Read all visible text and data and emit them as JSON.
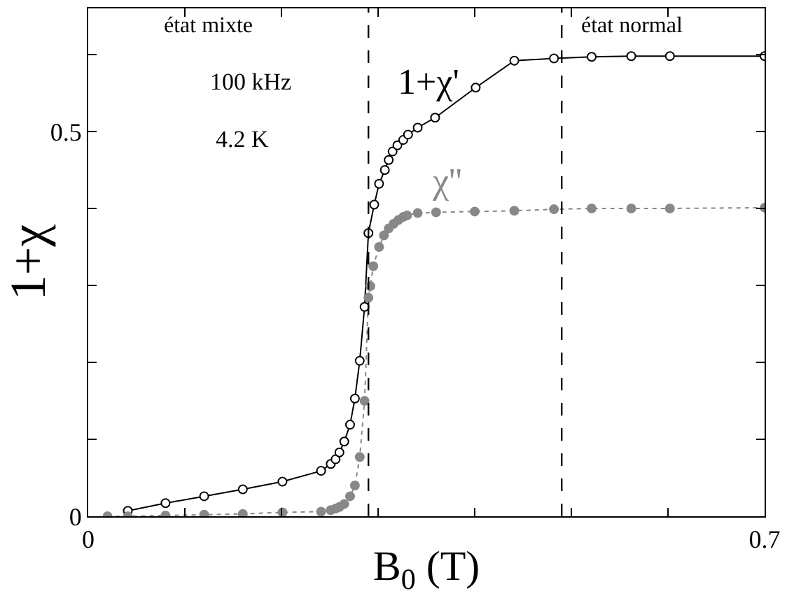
{
  "chart_data": {
    "type": "line",
    "xlabel": "B$_{0}$ (T)",
    "ylabel": "1+χ",
    "xlim": [
      0,
      0.7
    ],
    "ylim": [
      0,
      0.66
    ],
    "xticks": [
      0,
      {
        "value": 0.1,
        "label": null
      },
      {
        "value": 0.2,
        "label": null
      },
      {
        "value": 0.3,
        "label": null
      },
      {
        "value": 0.4,
        "label": null
      },
      {
        "value": 0.5,
        "label": null
      },
      {
        "value": 0.6,
        "label": null
      },
      {
        "value": 0.7,
        "label": "0.7"
      }
    ],
    "yticks": [
      0,
      {
        "value": 0.1,
        "label": null
      },
      {
        "value": 0.2,
        "label": null
      },
      {
        "value": 0.3,
        "label": null
      },
      {
        "value": 0.4,
        "label": null
      },
      0.5,
      {
        "value": 0.6,
        "label": null
      }
    ],
    "legend": false,
    "marker": "circle",
    "series": [
      {
        "name": "1+χ'",
        "color": "#000000",
        "line_style": "solid",
        "x": [
          0.041,
          0.08,
          0.12,
          0.16,
          0.201,
          0.241,
          0.251,
          0.256,
          0.26,
          0.265,
          0.271,
          0.276,
          0.281,
          0.286,
          0.29,
          0.296,
          0.301,
          0.307,
          0.311,
          0.315,
          0.32,
          0.326,
          0.331,
          0.341,
          0.359,
          0.401,
          0.441,
          0.482,
          0.521,
          0.562,
          0.602,
          0.7
        ],
        "values": [
          0.007,
          0.017,
          0.026,
          0.035,
          0.045,
          0.059,
          0.068,
          0.074,
          0.083,
          0.097,
          0.119,
          0.153,
          0.202,
          0.272,
          0.368,
          0.405,
          0.432,
          0.45,
          0.463,
          0.474,
          0.482,
          0.489,
          0.496,
          0.505,
          0.518,
          0.557,
          0.592,
          0.595,
          0.597,
          0.598,
          0.598,
          0.598
        ]
      },
      {
        "name": "χ''",
        "color": "#888888",
        "line_style": "dotted",
        "x": [
          0.02,
          0.041,
          0.08,
          0.12,
          0.16,
          0.201,
          0.241,
          0.251,
          0.256,
          0.26,
          0.265,
          0.271,
          0.276,
          0.281,
          0.286,
          0.29,
          0.292,
          0.295,
          0.301,
          0.306,
          0.311,
          0.316,
          0.321,
          0.326,
          0.33,
          0.341,
          0.36,
          0.4,
          0.441,
          0.482,
          0.521,
          0.562,
          0.602,
          0.7
        ],
        "values": [
          0.0,
          0.0,
          0.001,
          0.002,
          0.003,
          0.005,
          0.006,
          0.008,
          0.01,
          0.012,
          0.016,
          0.026,
          0.04,
          0.077,
          0.15,
          0.284,
          0.299,
          0.325,
          0.35,
          0.365,
          0.374,
          0.38,
          0.385,
          0.389,
          0.391,
          0.394,
          0.395,
          0.396,
          0.397,
          0.399,
          0.4,
          0.4,
          0.4,
          0.401
        ]
      }
    ],
    "ref_lines": [
      {
        "axis": "x",
        "value": 0.29,
        "color": "#000000",
        "line_style": "dashed"
      },
      {
        "axis": "x",
        "value": 0.49,
        "color": "#000000",
        "line_style": "dashed"
      }
    ],
    "annotations": [
      "état mixte",
      "100 kHz",
      "4.2 K",
      "état normal"
    ]
  }
}
